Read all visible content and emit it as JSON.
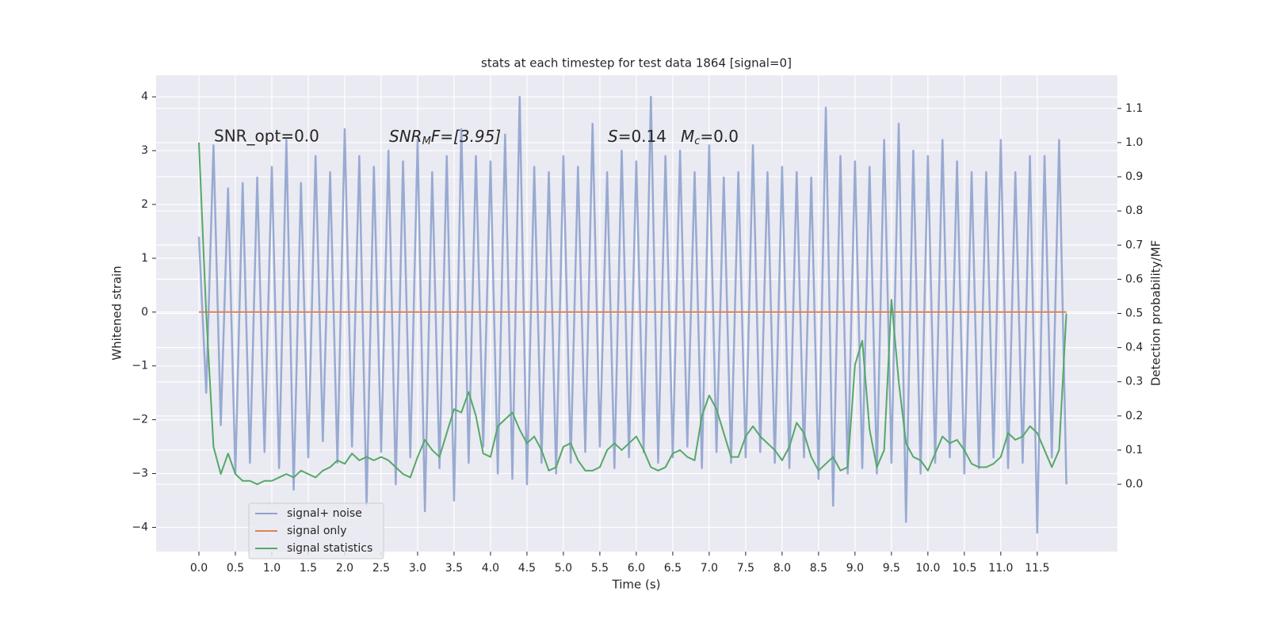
{
  "chart_data": {
    "type": "line",
    "title": "stats at each timestep for test data 1864 [signal=0]",
    "xlabel": "Time (s)",
    "ylabel": "Whitened strain",
    "y2label": "Detection probability/MF",
    "annotations": {
      "snr_opt": "SNR_opt=0.0",
      "snr_mf": [
        "SNR",
        "M",
        "F=[3.95]"
      ],
      "s": [
        "S",
        "=0.14"
      ],
      "mc": [
        "M",
        "c",
        "=0.0"
      ]
    },
    "grid": true,
    "legend": "lower left",
    "background": "#eaeaf2",
    "xlim": [
      -0.587,
      12.6
    ],
    "xticks": [
      {
        "value": 0,
        "label": "0.0"
      },
      0.5,
      {
        "value": 1,
        "label": "1.0"
      },
      1.5,
      {
        "value": 2,
        "label": "2.0"
      },
      2.5,
      {
        "value": 3,
        "label": "3.0"
      },
      3.5,
      {
        "value": 4,
        "label": "4.0"
      },
      4.5,
      {
        "value": 5,
        "label": "5.0"
      },
      5.5,
      {
        "value": 6,
        "label": "6.0"
      },
      6.5,
      {
        "value": 7,
        "label": "7.0"
      },
      7.5,
      {
        "value": 8,
        "label": "8.0"
      },
      8.5,
      {
        "value": 9,
        "label": "9.0"
      },
      9.5,
      {
        "value": 10,
        "label": "10.0"
      },
      10.5,
      {
        "value": 11,
        "label": "11.0"
      },
      11.5
    ],
    "ylim": [
      -4.45,
      4.4
    ],
    "yticks": [
      {
        "value": -4,
        "label": "−4"
      },
      {
        "value": -3,
        "label": "−3"
      },
      {
        "value": -2,
        "label": "−2"
      },
      {
        "value": -1,
        "label": "−1"
      },
      0,
      1,
      2,
      3,
      4
    ],
    "y2lim": [
      -0.197,
      1.197
    ],
    "y2ticks": [
      {
        "value": 0,
        "label": "0.0"
      },
      0.1,
      0.2,
      0.3,
      0.4,
      0.5,
      0.6,
      0.7,
      0.8,
      0.9,
      {
        "value": 1,
        "label": "1.0"
      },
      1.1
    ],
    "x": [
      0,
      0.1,
      0.2,
      0.3,
      0.4,
      0.5,
      0.6,
      0.7,
      0.8,
      0.9,
      1,
      1.1,
      1.2,
      1.3,
      1.4,
      1.5,
      1.6,
      1.7,
      1.8,
      1.9,
      2,
      2.1,
      2.2,
      2.3,
      2.4,
      2.5,
      2.6,
      2.7,
      2.8,
      2.9,
      3,
      3.1,
      3.2,
      3.3,
      3.4,
      3.5,
      3.6,
      3.7,
      3.8,
      3.9,
      4,
      4.1,
      4.2,
      4.3,
      4.4,
      4.5,
      4.6,
      4.7,
      4.8,
      4.9,
      5,
      5.1,
      5.2,
      5.3,
      5.4,
      5.5,
      5.6,
      5.7,
      5.8,
      5.9,
      6,
      6.1,
      6.2,
      6.3,
      6.4,
      6.5,
      6.6,
      6.7,
      6.8,
      6.9,
      7,
      7.1,
      7.2,
      7.3,
      7.4,
      7.5,
      7.6,
      7.7,
      7.8,
      7.9,
      8,
      8.1,
      8.2,
      8.3,
      8.4,
      8.5,
      8.6,
      8.7,
      8.8,
      8.9,
      9,
      9.1,
      9.2,
      9.3,
      9.4,
      9.5,
      9.6,
      9.7,
      9.8,
      9.9,
      10,
      10.1,
      10.2,
      10.3,
      10.4,
      10.5,
      10.6,
      10.7,
      10.8,
      10.9,
      11,
      11.1,
      11.2,
      11.3,
      11.4,
      11.5,
      11.6,
      11.7,
      11.8,
      11.9
    ],
    "series": [
      {
        "name": "signal+ noise",
        "color": "#8fa3cd",
        "values": [
          1.4,
          -1.5,
          3.1,
          -2.1,
          2.3,
          -3.0,
          2.4,
          -2.8,
          2.5,
          -2.6,
          2.7,
          -2.9,
          3.2,
          -3.3,
          2.4,
          -2.7,
          2.9,
          -2.4,
          2.6,
          -2.8,
          3.4,
          -2.5,
          2.9,
          -3.6,
          2.7,
          -2.6,
          3.0,
          -3.2,
          2.8,
          -2.7,
          3.2,
          -3.7,
          2.6,
          -2.9,
          2.9,
          -3.5,
          3.4,
          -2.8,
          2.9,
          -2.5,
          2.8,
          -3.0,
          3.3,
          -3.1,
          4.0,
          -3.2,
          2.7,
          -2.8,
          2.6,
          -3.0,
          2.9,
          -2.8,
          2.7,
          -2.6,
          3.5,
          -2.5,
          2.6,
          -2.9,
          3.0,
          -2.7,
          2.8,
          -2.6,
          4.0,
          -2.8,
          2.9,
          -2.7,
          3.0,
          -2.5,
          2.6,
          -2.9,
          3.1,
          -2.6,
          2.5,
          -2.8,
          2.6,
          -2.7,
          3.1,
          -2.6,
          2.6,
          -2.8,
          2.7,
          -2.9,
          2.6,
          -2.7,
          2.5,
          -3.1,
          3.8,
          -3.6,
          2.9,
          -3.0,
          2.8,
          -2.9,
          2.7,
          -3.0,
          3.2,
          -2.8,
          3.5,
          -3.9,
          3.0,
          -3.0,
          2.9,
          -2.8,
          3.2,
          -2.7,
          2.8,
          -3.0,
          2.6,
          -2.9,
          2.6,
          -2.7,
          3.2,
          -2.9,
          2.6,
          -2.8,
          2.9,
          -4.1,
          2.9,
          -2.7,
          3.2,
          -3.2
        ]
      },
      {
        "name": "signal only",
        "color": "#dd8452",
        "values": [
          0,
          0,
          0,
          0,
          0,
          0,
          0,
          0,
          0,
          0,
          0,
          0,
          0,
          0,
          0,
          0,
          0,
          0,
          0,
          0,
          0,
          0,
          0,
          0,
          0,
          0,
          0,
          0,
          0,
          0,
          0,
          0,
          0,
          0,
          0,
          0,
          0,
          0,
          0,
          0,
          0,
          0,
          0,
          0,
          0,
          0,
          0,
          0,
          0,
          0,
          0,
          0,
          0,
          0,
          0,
          0,
          0,
          0,
          0,
          0,
          0,
          0,
          0,
          0,
          0,
          0,
          0,
          0,
          0,
          0,
          0,
          0,
          0,
          0,
          0,
          0,
          0,
          0,
          0,
          0,
          0,
          0,
          0,
          0,
          0,
          0,
          0,
          0,
          0,
          0,
          0,
          0,
          0,
          0,
          0,
          0,
          0,
          0,
          0,
          0,
          0,
          0,
          0,
          0,
          0,
          0,
          0,
          0,
          0,
          0,
          0,
          0,
          0,
          0,
          0,
          0,
          0,
          0,
          0,
          0
        ]
      },
      {
        "name": "signal statistics",
        "color": "#55a868",
        "axis": "y2",
        "values": [
          1.0,
          0.5,
          0.11,
          0.03,
          0.09,
          0.03,
          0.01,
          0.01,
          0.0,
          0.01,
          0.01,
          0.02,
          0.03,
          0.02,
          0.04,
          0.03,
          0.02,
          0.04,
          0.05,
          0.07,
          0.06,
          0.09,
          0.07,
          0.08,
          0.07,
          0.08,
          0.07,
          0.05,
          0.03,
          0.02,
          0.08,
          0.13,
          0.1,
          0.08,
          0.15,
          0.22,
          0.21,
          0.27,
          0.2,
          0.09,
          0.08,
          0.17,
          0.19,
          0.21,
          0.16,
          0.12,
          0.14,
          0.1,
          0.04,
          0.05,
          0.11,
          0.12,
          0.07,
          0.04,
          0.04,
          0.05,
          0.1,
          0.12,
          0.1,
          0.12,
          0.14,
          0.1,
          0.05,
          0.04,
          0.05,
          0.09,
          0.1,
          0.08,
          0.07,
          0.2,
          0.26,
          0.22,
          0.15,
          0.08,
          0.08,
          0.14,
          0.17,
          0.14,
          0.12,
          0.1,
          0.07,
          0.11,
          0.18,
          0.15,
          0.08,
          0.04,
          0.06,
          0.08,
          0.04,
          0.05,
          0.35,
          0.42,
          0.16,
          0.05,
          0.1,
          0.54,
          0.3,
          0.12,
          0.08,
          0.07,
          0.04,
          0.09,
          0.14,
          0.12,
          0.13,
          0.1,
          0.06,
          0.05,
          0.05,
          0.06,
          0.08,
          0.15,
          0.13,
          0.14,
          0.17,
          0.15,
          0.1,
          0.05,
          0.1,
          0.5
        ]
      }
    ]
  }
}
